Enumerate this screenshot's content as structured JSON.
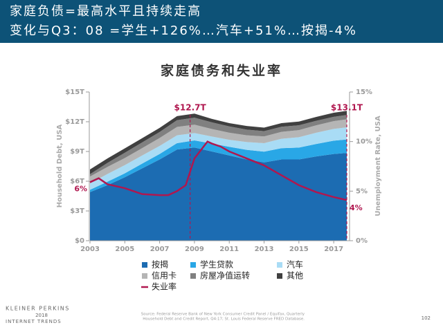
{
  "header": {
    "line1": "家庭负债=最高水平且持续走高",
    "line2": "变化与Q3：08 =学生+126%…汽车+51%…按揭-4%"
  },
  "chart_data": {
    "type": "area",
    "stacked": true,
    "title": "家庭债务和失业率",
    "y_label": "Household Debt, USA",
    "y2_label": "Unemployment Rate, USA",
    "x": [
      2003,
      2004,
      2005,
      2006,
      2007,
      2008,
      2009,
      2010,
      2011,
      2012,
      2013,
      2014,
      2015,
      2016,
      2017,
      2017.75
    ],
    "xlim": [
      2003,
      2017.75
    ],
    "xticks": [
      2003,
      2005,
      2007,
      2009,
      2011,
      2013,
      2015,
      2017
    ],
    "ylim": [
      0,
      15
    ],
    "yticks": [
      {
        "value": 0,
        "label": "$0"
      },
      {
        "value": 3,
        "label": "$3T"
      },
      {
        "value": 6,
        "label": "$6T"
      },
      {
        "value": 9,
        "label": "$9T"
      },
      {
        "value": 12,
        "label": "$12T"
      },
      {
        "value": 15,
        "label": "$15T"
      }
    ],
    "y2lim": [
      0,
      15
    ],
    "y2ticks": [
      {
        "value": 0,
        "label": "0%"
      },
      {
        "value": 5,
        "label": "5%"
      },
      {
        "value": 10,
        "label": "10%"
      },
      {
        "value": 15,
        "label": "15%"
      }
    ],
    "series": [
      {
        "name": "按揭",
        "color": "#1c6cb2",
        "values": [
          4.9,
          5.6,
          6.4,
          7.3,
          8.2,
          9.2,
          9.4,
          9.0,
          8.6,
          8.2,
          7.9,
          8.2,
          8.2,
          8.5,
          8.75,
          8.85
        ]
      },
      {
        "name": "学生贷款",
        "color": "#29a7e6",
        "values": [
          0.24,
          0.35,
          0.39,
          0.48,
          0.55,
          0.64,
          0.72,
          0.8,
          0.87,
          0.97,
          1.08,
          1.13,
          1.19,
          1.26,
          1.34,
          1.36
        ]
      },
      {
        "name": "汽车",
        "color": "#a9dcf5",
        "values": [
          0.64,
          0.77,
          0.83,
          0.82,
          0.81,
          0.79,
          0.74,
          0.71,
          0.71,
          0.78,
          0.86,
          0.95,
          1.05,
          1.13,
          1.19,
          1.22
        ]
      },
      {
        "name": "信用卡",
        "color": "#b5b5b5",
        "values": [
          0.69,
          0.72,
          0.72,
          0.74,
          0.8,
          0.85,
          0.84,
          0.76,
          0.71,
          0.68,
          0.68,
          0.7,
          0.71,
          0.75,
          0.78,
          0.81
        ]
      },
      {
        "name": "房屋净值运转",
        "color": "#808080",
        "values": [
          0.24,
          0.4,
          0.53,
          0.58,
          0.6,
          0.68,
          0.71,
          0.67,
          0.64,
          0.58,
          0.53,
          0.51,
          0.49,
          0.46,
          0.44,
          0.44
        ]
      },
      {
        "name": "其他",
        "color": "#404040",
        "values": [
          0.48,
          0.45,
          0.44,
          0.42,
          0.42,
          0.41,
          0.41,
          0.35,
          0.33,
          0.36,
          0.36,
          0.37,
          0.38,
          0.39,
          0.41,
          0.42
        ]
      }
    ],
    "line_series": {
      "name": "失业率",
      "color": "#b0174f",
      "axis": "y2",
      "x": [
        2003,
        2003.5,
        2004,
        2005,
        2006,
        2007,
        2007.5,
        2008,
        2008.5,
        2009,
        2009.75,
        2010,
        2010.5,
        2011,
        2012,
        2013,
        2014,
        2015,
        2016,
        2017,
        2017.75
      ],
      "values": [
        5.9,
        6.3,
        5.7,
        5.3,
        4.7,
        4.6,
        4.6,
        5.0,
        5.6,
        8.3,
        10.0,
        9.8,
        9.5,
        9.0,
        8.3,
        7.6,
        6.6,
        5.6,
        4.9,
        4.4,
        4.1
      ],
      "value_labels": [
        {
          "index": 0,
          "label": "6%"
        },
        {
          "index": 20,
          "label": "4%"
        }
      ]
    },
    "annotations": [
      {
        "x": 2008.75,
        "label": "$12.7T",
        "value": 12.7
      },
      {
        "x": 2017.75,
        "label": "$13.1T",
        "value": 13.1
      }
    ]
  },
  "footer": {
    "brand": "KLEINER PERKINS",
    "year": "2018",
    "report": "INTERNET TRENDS",
    "source": [
      "Source: Federal Reserve Bank of New York Consumer Credit Panel / Equifax, Quarterly",
      "Household Debt and Credit Report, Q4:17; St. Louis Federal Reserve FRED Database."
    ],
    "page": "102"
  }
}
